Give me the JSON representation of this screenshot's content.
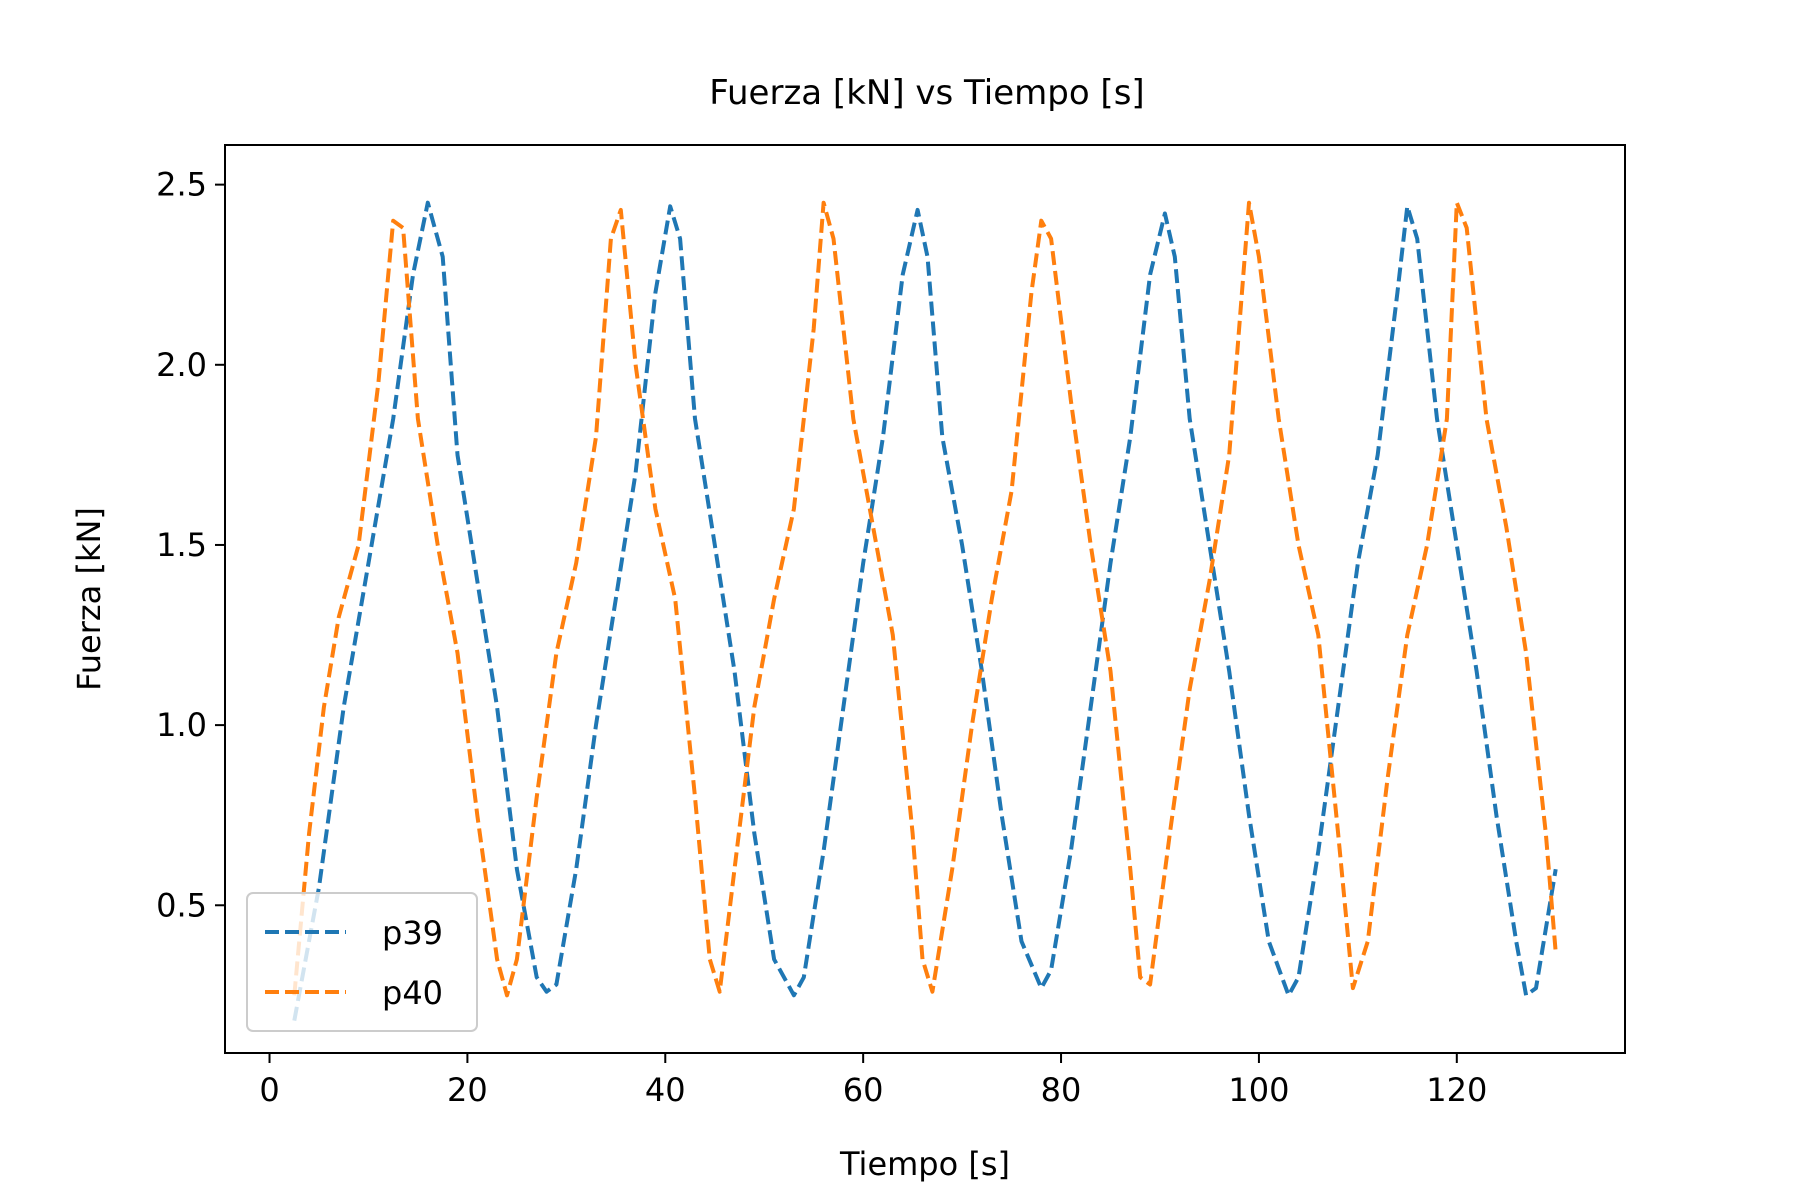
{
  "chart_data": {
    "type": "line",
    "title": "Fuerza [kN] vs Tiempo [s]",
    "xlabel": "Tiempo [s]",
    "ylabel": "Fuerza [kN]",
    "xlim": [
      -4.5,
      137
    ],
    "ylim": [
      0.09,
      2.61
    ],
    "xticks": [
      0,
      20,
      40,
      60,
      80,
      100,
      120
    ],
    "yticks": [
      0.5,
      1.0,
      1.5,
      2.0,
      2.5
    ],
    "xtick_labels": [
      "0",
      "20",
      "40",
      "60",
      "80",
      "100",
      "120"
    ],
    "ytick_labels": [
      "0.5",
      "1.0",
      "1.5",
      "2.0",
      "2.5"
    ],
    "grid": false,
    "legend_position": "lower-left",
    "line_style": "dashed",
    "series": [
      {
        "name": "p39",
        "color": "#1f77b4",
        "x": [
          2.5,
          5,
          7.5,
          10,
          12.5,
          14.5,
          16,
          17.5,
          19,
          21,
          23,
          25,
          27,
          28,
          29,
          31,
          33,
          35,
          37,
          39,
          40.5,
          41.5,
          43,
          45,
          47,
          49,
          51,
          53,
          54,
          56,
          58,
          60,
          62,
          64,
          65.5,
          66.5,
          68,
          70,
          72,
          74,
          76,
          78,
          79,
          81,
          83,
          85,
          87,
          89,
          90.5,
          91.5,
          93,
          95,
          97,
          99,
          101,
          103,
          104,
          106,
          108,
          110,
          112,
          114,
          115,
          116,
          118,
          120,
          122,
          124,
          126,
          127,
          128,
          130
        ],
        "y": [
          0.18,
          0.55,
          1.05,
          1.45,
          1.85,
          2.25,
          2.45,
          2.3,
          1.75,
          1.4,
          1.05,
          0.6,
          0.3,
          0.26,
          0.28,
          0.6,
          1.0,
          1.35,
          1.7,
          2.2,
          2.44,
          2.35,
          1.85,
          1.5,
          1.15,
          0.7,
          0.35,
          0.25,
          0.3,
          0.65,
          1.05,
          1.45,
          1.8,
          2.25,
          2.43,
          2.3,
          1.8,
          1.5,
          1.15,
          0.75,
          0.4,
          0.27,
          0.32,
          0.65,
          1.05,
          1.45,
          1.8,
          2.25,
          2.42,
          2.3,
          1.85,
          1.5,
          1.15,
          0.75,
          0.4,
          0.25,
          0.3,
          0.65,
          1.05,
          1.45,
          1.75,
          2.2,
          2.44,
          2.35,
          1.85,
          1.5,
          1.15,
          0.75,
          0.4,
          0.25,
          0.27,
          0.6
        ]
      },
      {
        "name": "p40",
        "color": "#ff7f0e",
        "x": [
          2.5,
          4,
          5.5,
          7,
          9,
          11,
          12.5,
          13.5,
          15,
          17,
          19,
          21,
          23,
          24,
          25,
          27,
          29,
          31,
          33,
          34.5,
          35.5,
          37,
          39,
          41,
          43,
          44.5,
          45.5,
          47,
          49,
          51,
          53,
          55,
          56,
          57,
          59,
          61,
          63,
          65,
          66,
          67,
          69,
          71,
          73,
          75,
          77,
          78,
          79,
          81,
          83,
          85,
          87,
          88,
          89,
          91,
          93,
          95,
          97,
          99,
          100,
          102,
          104,
          106,
          108,
          109.5,
          111,
          113,
          115,
          117,
          119,
          120,
          121,
          123,
          125,
          127,
          129,
          130
        ],
        "y": [
          0.25,
          0.7,
          1.05,
          1.3,
          1.5,
          1.95,
          2.4,
          2.38,
          1.85,
          1.5,
          1.2,
          0.75,
          0.35,
          0.25,
          0.35,
          0.8,
          1.2,
          1.45,
          1.8,
          2.35,
          2.43,
          2.0,
          1.6,
          1.35,
          0.8,
          0.35,
          0.26,
          0.6,
          1.05,
          1.35,
          1.6,
          2.1,
          2.45,
          2.35,
          1.85,
          1.55,
          1.25,
          0.7,
          0.35,
          0.26,
          0.6,
          1.0,
          1.35,
          1.65,
          2.2,
          2.4,
          2.35,
          1.9,
          1.5,
          1.15,
          0.6,
          0.3,
          0.28,
          0.7,
          1.1,
          1.4,
          1.75,
          2.45,
          2.3,
          1.85,
          1.5,
          1.25,
          0.7,
          0.27,
          0.4,
          0.85,
          1.25,
          1.5,
          1.85,
          2.45,
          2.38,
          1.85,
          1.55,
          1.2,
          0.7,
          0.37
        ]
      }
    ]
  }
}
